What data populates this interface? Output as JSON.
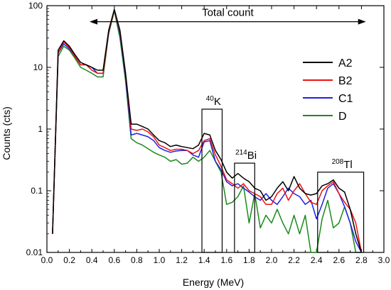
{
  "chart_data": {
    "type": "line",
    "xlabel": "Energy (MeV)",
    "ylabel": "Counts (cts)",
    "xlim": [
      0.0,
      3.0
    ],
    "ylim": [
      0.01,
      100
    ],
    "y_scale": "log",
    "x_ticks": [
      "0.0",
      "0.2",
      "0.4",
      "0.6",
      "0.8",
      "1.0",
      "1.2",
      "1.4",
      "1.6",
      "1.8",
      "2.0",
      "2.2",
      "2.4",
      "2.6",
      "2.8",
      "3.0"
    ],
    "y_ticks": [
      {
        "value": 0.01,
        "label": "0.01"
      },
      {
        "value": 0.1,
        "label": "0.1"
      },
      {
        "value": 1,
        "label": "1"
      },
      {
        "value": 10,
        "label": "10"
      },
      {
        "value": 100,
        "label": "100"
      }
    ],
    "legend_position": "right",
    "total_count": {
      "label": "Total count",
      "x_start": 0.38,
      "x_end": 2.84,
      "y": 55
    },
    "regions": [
      {
        "isotope": "K",
        "mass": "40",
        "x0": 1.38,
        "x1": 1.56,
        "y_top": 2.1
      },
      {
        "isotope": "Bi",
        "mass": "214",
        "x0": 1.67,
        "x1": 1.85,
        "y_top": 0.28
      },
      {
        "isotope": "Tl",
        "mass": "208",
        "x0": 2.41,
        "x1": 2.82,
        "y_top": 0.2
      }
    ],
    "x": [
      0.05,
      0.1,
      0.15,
      0.2,
      0.25,
      0.3,
      0.35,
      0.4,
      0.45,
      0.5,
      0.55,
      0.6,
      0.65,
      0.7,
      0.75,
      0.8,
      0.85,
      0.9,
      0.95,
      1.0,
      1.05,
      1.1,
      1.15,
      1.2,
      1.25,
      1.3,
      1.35,
      1.4,
      1.45,
      1.5,
      1.55,
      1.6,
      1.65,
      1.7,
      1.75,
      1.8,
      1.85,
      1.9,
      1.95,
      2.0,
      2.05,
      2.1,
      2.15,
      2.2,
      2.25,
      2.3,
      2.35,
      2.4,
      2.45,
      2.5,
      2.55,
      2.6,
      2.65,
      2.7,
      2.75,
      2.8
    ],
    "series": [
      {
        "name": "A2",
        "color": "#000000",
        "values": [
          0.02,
          19,
          27,
          22,
          16,
          12,
          11,
          10,
          9,
          9,
          40,
          87,
          40,
          8,
          1.2,
          1.2,
          1.1,
          1.0,
          0.8,
          0.65,
          0.6,
          0.52,
          0.55,
          0.52,
          0.5,
          0.48,
          0.55,
          0.85,
          0.8,
          0.45,
          0.32,
          0.2,
          0.16,
          0.19,
          0.16,
          0.14,
          0.11,
          0.1,
          0.07,
          0.08,
          0.11,
          0.14,
          0.1,
          0.17,
          0.11,
          0.09,
          0.085,
          0.09,
          0.12,
          0.13,
          0.15,
          0.11,
          0.095,
          0.05,
          0.02,
          0.01
        ]
      },
      {
        "name": "B2",
        "color": "#ee1111",
        "values": [
          0.02,
          17,
          26,
          21,
          15,
          11,
          11,
          9,
          8,
          8,
          38,
          85,
          38,
          8,
          1.0,
          0.95,
          1.0,
          0.9,
          0.75,
          0.55,
          0.5,
          0.45,
          0.47,
          0.47,
          0.45,
          0.4,
          0.45,
          0.65,
          0.7,
          0.38,
          0.25,
          0.15,
          0.13,
          0.11,
          0.13,
          0.1,
          0.09,
          0.08,
          0.06,
          0.06,
          0.09,
          0.11,
          0.07,
          0.1,
          0.13,
          0.09,
          0.065,
          0.06,
          0.1,
          0.12,
          0.14,
          0.09,
          0.065,
          0.05,
          0.03,
          0.01
        ]
      },
      {
        "name": "C1",
        "color": "#1f1fe6",
        "values": [
          0.02,
          17,
          24,
          20,
          15,
          11,
          11,
          10,
          8,
          8,
          37,
          86,
          35,
          7,
          0.8,
          0.85,
          0.8,
          0.75,
          0.65,
          0.5,
          0.45,
          0.42,
          0.44,
          0.45,
          0.45,
          0.38,
          0.35,
          0.62,
          0.65,
          0.3,
          0.22,
          0.14,
          0.12,
          0.13,
          0.11,
          0.095,
          0.08,
          0.07,
          0.09,
          0.07,
          0.06,
          0.08,
          0.11,
          0.09,
          0.08,
          0.06,
          0.07,
          0.035,
          0.06,
          0.11,
          0.13,
          0.09,
          0.055,
          0.03,
          0.015,
          0.01
        ]
      },
      {
        "name": "D",
        "color": "#1a8a1a",
        "values": [
          0.02,
          15,
          22,
          19,
          14,
          10,
          9,
          8,
          7,
          7,
          35,
          82,
          30,
          6,
          0.7,
          0.6,
          0.55,
          0.48,
          0.42,
          0.38,
          0.35,
          0.3,
          0.32,
          0.27,
          0.28,
          0.35,
          0.3,
          0.35,
          0.45,
          0.3,
          0.2,
          0.06,
          0.065,
          0.08,
          0.12,
          0.03,
          0.09,
          0.025,
          0.04,
          0.03,
          0.05,
          0.03,
          0.02,
          0.04,
          0.02,
          0.04,
          0.01,
          0.01,
          0.035,
          0.07,
          0.025,
          0.03,
          0.055,
          0.03,
          0.01,
          0.01
        ]
      }
    ]
  }
}
